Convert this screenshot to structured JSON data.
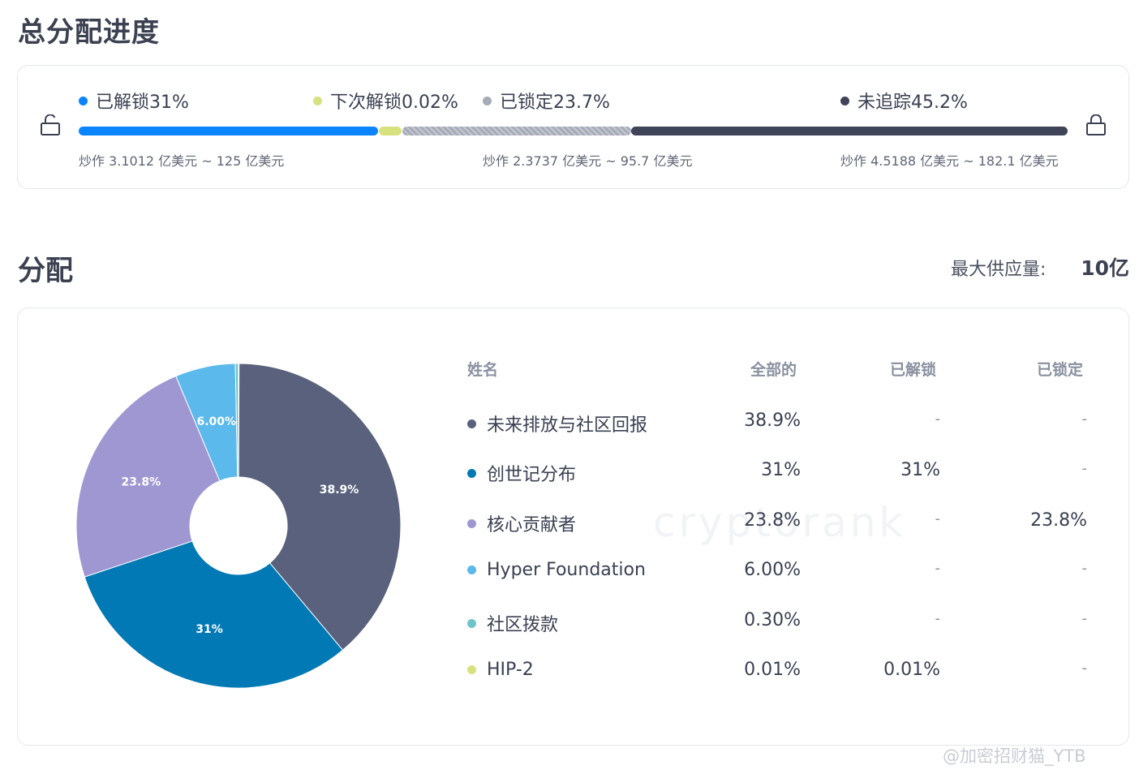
{
  "progress": {
    "title": "总分配进度",
    "legend": [
      {
        "label": "已解锁31%",
        "color": "#0a84ff"
      },
      {
        "label": "下次解锁0.02%",
        "color": "#d7e27e"
      },
      {
        "label": "已锁定23.7%",
        "color": "#a6abb8"
      },
      {
        "label": "未追踪45.2%",
        "color": "#3f4459"
      }
    ],
    "bar": [
      {
        "name": "unlocked",
        "value": 31,
        "color": "#0a84ff"
      },
      {
        "name": "next-unlock",
        "value": 0.02,
        "color": "#d7e27e"
      },
      {
        "name": "locked",
        "value": 23.7,
        "color": "#a6abb8"
      },
      {
        "name": "untracked",
        "value": 45.2,
        "color": "#3f4459"
      }
    ],
    "ranges": [
      "炒作 3.1012 亿美元 ~ 125 亿美元",
      "炒作 2.3737 亿美元 ~ 95.7 亿美元",
      "炒作 4.5188 亿美元 ~ 182.1 亿美元"
    ]
  },
  "distribution": {
    "title": "分配",
    "supply_label": "最大供应量:",
    "supply_value": "10亿",
    "headers": {
      "name": "姓名",
      "total": "全部的",
      "unlocked": "已解锁",
      "locked": "已锁定"
    },
    "rows": [
      {
        "name": "未来排放与社区回报",
        "total": "38.9%",
        "unlocked": "-",
        "locked": "-",
        "color": "#5a617c"
      },
      {
        "name": "创世记分布",
        "total": "31%",
        "unlocked": "31%",
        "locked": "-",
        "color": "#0079b5"
      },
      {
        "name": "核心贡献者",
        "total": "23.8%",
        "unlocked": "-",
        "locked": "23.8%",
        "color": "#9f97d2"
      },
      {
        "name": "Hyper Foundation",
        "total": "6.00%",
        "unlocked": "-",
        "locked": "-",
        "color": "#5bb9ec"
      },
      {
        "name": "社区拨款",
        "total": "0.30%",
        "unlocked": "-",
        "locked": "-",
        "color": "#6fc4c8"
      },
      {
        "name": "HIP-2",
        "total": "0.01%",
        "unlocked": "0.01%",
        "locked": "-",
        "color": "#d7e27e"
      }
    ]
  },
  "chart_data": {
    "type": "pie",
    "donut": true,
    "categories": [
      "未来排放与社区回报",
      "创世记分布",
      "核心贡献者",
      "Hyper Foundation",
      "社区拨款",
      "HIP-2"
    ],
    "values": [
      38.9,
      31,
      23.8,
      6.0,
      0.3,
      0.01
    ],
    "labels": [
      "38.9%",
      "31%",
      "23.8%",
      "6.00%",
      "",
      ""
    ],
    "colors": [
      "#5a617c",
      "#0079b5",
      "#9f97d2",
      "#5bb9ec",
      "#6fc4c8",
      "#d7e27e"
    ]
  },
  "watermark": "cryptorank",
  "credit": "@加密招财猫_YTB"
}
